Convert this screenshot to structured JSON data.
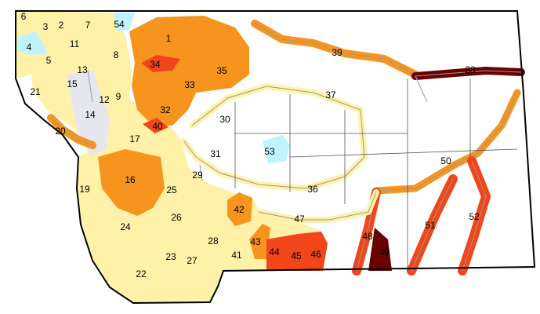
{
  "colors": {
    "light_yellow": "#FFF2A8",
    "orange": "#F7941D",
    "red_orange": "#F0461A",
    "maroon": "#6A0000",
    "light_blue": "#BFF3FF",
    "light_gray": "#E6E6EE",
    "water": "#A9B4E0",
    "border": "#000000"
  },
  "regions": [
    {
      "label": "1",
      "class": "orange"
    },
    {
      "label": "2",
      "class": "light_yellow"
    },
    {
      "label": "3",
      "class": "light_yellow"
    },
    {
      "label": "4",
      "class": "light_blue"
    },
    {
      "label": "5",
      "class": "light_yellow"
    },
    {
      "label": "6",
      "class": "light_yellow"
    },
    {
      "label": "7",
      "class": "light_yellow"
    },
    {
      "label": "8",
      "class": "light_yellow"
    },
    {
      "label": "9",
      "class": "light_yellow"
    },
    {
      "label": "11",
      "class": "light_yellow"
    },
    {
      "label": "12",
      "class": "light_yellow"
    },
    {
      "label": "13",
      "class": "light_yellow"
    },
    {
      "label": "14",
      "class": "light_gray"
    },
    {
      "label": "15",
      "class": "light_gray"
    },
    {
      "label": "16",
      "class": "orange"
    },
    {
      "label": "17",
      "class": "light_yellow"
    },
    {
      "label": "19",
      "class": "light_yellow"
    },
    {
      "label": "20",
      "class": "orange"
    },
    {
      "label": "21",
      "class": "light_yellow"
    },
    {
      "label": "22",
      "class": "light_yellow"
    },
    {
      "label": "23",
      "class": "light_yellow"
    },
    {
      "label": "24",
      "class": "light_yellow"
    },
    {
      "label": "25",
      "class": "light_yellow"
    },
    {
      "label": "26",
      "class": "light_yellow"
    },
    {
      "label": "27",
      "class": "light_yellow"
    },
    {
      "label": "28",
      "class": "light_yellow"
    },
    {
      "label": "29",
      "class": "light_yellow"
    },
    {
      "label": "30",
      "class": "light_yellow"
    },
    {
      "label": "31",
      "class": "light_yellow"
    },
    {
      "label": "32",
      "class": "orange"
    },
    {
      "label": "33",
      "class": "orange"
    },
    {
      "label": "34",
      "class": "red_orange"
    },
    {
      "label": "35",
      "class": "orange"
    },
    {
      "label": "36",
      "class": "light_yellow"
    },
    {
      "label": "37",
      "class": "light_yellow"
    },
    {
      "label": "38",
      "class": "maroon"
    },
    {
      "label": "39",
      "class": "orange"
    },
    {
      "label": "40",
      "class": "red_orange"
    },
    {
      "label": "41",
      "class": "light_yellow"
    },
    {
      "label": "42",
      "class": "orange"
    },
    {
      "label": "43",
      "class": "orange"
    },
    {
      "label": "44",
      "class": "red_orange"
    },
    {
      "label": "45",
      "class": "red_orange"
    },
    {
      "label": "46",
      "class": "red_orange"
    },
    {
      "label": "47",
      "class": "light_yellow"
    },
    {
      "label": "48",
      "class": "red_orange"
    },
    {
      "label": "49",
      "class": "maroon"
    },
    {
      "label": "50",
      "class": "orange"
    },
    {
      "label": "51",
      "class": "red_orange"
    },
    {
      "label": "52",
      "class": "red_orange"
    },
    {
      "label": "53",
      "class": "light_blue"
    },
    {
      "label": "54",
      "class": "light_blue"
    }
  ]
}
